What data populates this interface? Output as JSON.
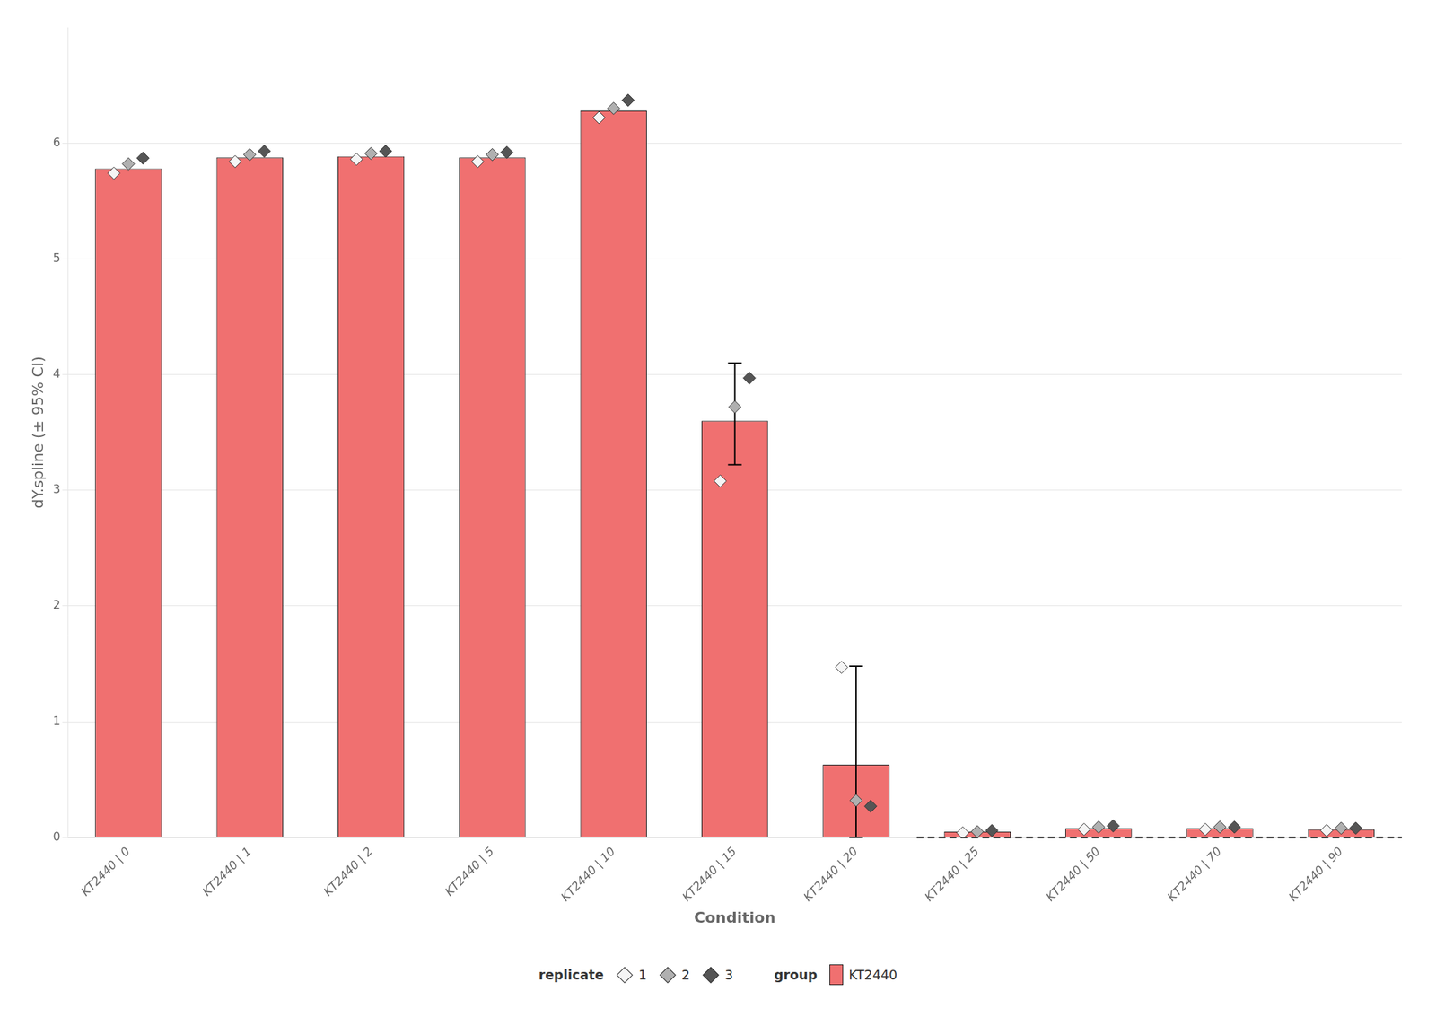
{
  "chart_data": {
    "type": "bar",
    "x_label": "Condition",
    "y_label": "dY.spline (± 95% CI)",
    "categories": [
      "KT2440 | 0",
      "KT2440 | 1",
      "KT2440 | 2",
      "KT2440 | 5",
      "KT2440 | 10",
      "KT2440 | 15",
      "KT2440 | 20",
      "KT2440 | 25",
      "KT2440 | 50",
      "KT2440 | 70",
      "KT2440 | 90"
    ],
    "legend_groups": [
      "replicate",
      "group"
    ],
    "series": [
      {
        "name": "KT2440",
        "type": "bar",
        "color": "#F07070",
        "legend_group": "group",
        "values": [
          5.78,
          5.875,
          5.885,
          5.875,
          6.28,
          3.6,
          0.63,
          0.05,
          0.08,
          0.08,
          0.07
        ],
        "ci_low": [
          5.78,
          5.875,
          5.885,
          5.875,
          6.28,
          3.22,
          0.0,
          0.05,
          0.08,
          0.08,
          0.07
        ],
        "ci_high": [
          5.78,
          5.875,
          5.885,
          5.875,
          6.28,
          4.1,
          1.48,
          0.05,
          0.08,
          0.08,
          0.07
        ]
      },
      {
        "name": "1",
        "type": "scatter",
        "marker": "diamond",
        "color": "#f5f5f5",
        "legend_group": "replicate",
        "values": [
          5.74,
          5.84,
          5.86,
          5.84,
          6.22,
          3.08,
          1.47,
          0.04,
          0.07,
          0.07,
          0.06
        ]
      },
      {
        "name": "2",
        "type": "scatter",
        "marker": "diamond",
        "color": "#b0b0b0",
        "legend_group": "replicate",
        "values": [
          5.82,
          5.9,
          5.91,
          5.9,
          6.3,
          3.72,
          0.32,
          0.05,
          0.09,
          0.09,
          0.08
        ]
      },
      {
        "name": "3",
        "type": "scatter",
        "marker": "diamond",
        "color": "#555555",
        "legend_group": "replicate",
        "values": [
          5.87,
          5.93,
          5.93,
          5.92,
          6.37,
          3.97,
          0.27,
          0.06,
          0.1,
          0.09,
          0.08
        ]
      }
    ],
    "lines": [
      {
        "y": 0,
        "from": "KT2440 | 25",
        "line_style": "dashed",
        "color": "#000000"
      }
    ],
    "ylim": [
      0.0,
      7.0
    ],
    "yticks": [
      0,
      1,
      2,
      3,
      4,
      5,
      6
    ],
    "grid": "y",
    "legend": "bottom"
  }
}
